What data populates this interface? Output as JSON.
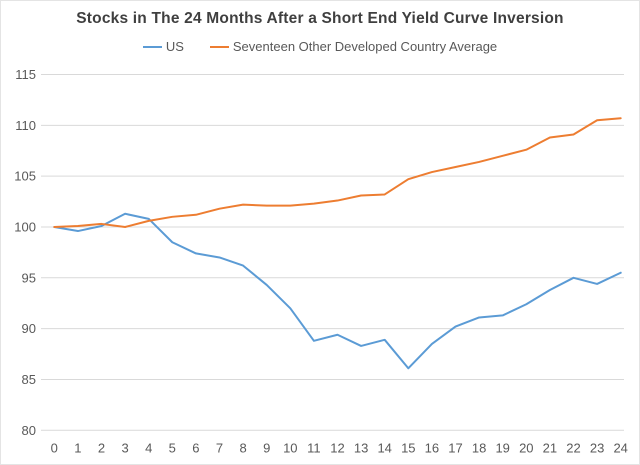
{
  "chart_data": {
    "type": "line",
    "title": "Stocks in The 24 Months After a Short End Yield Curve Inversion",
    "xlabel": "",
    "ylabel": "",
    "x": [
      0,
      1,
      2,
      3,
      4,
      5,
      6,
      7,
      8,
      9,
      10,
      11,
      12,
      13,
      14,
      15,
      16,
      17,
      18,
      19,
      20,
      21,
      22,
      23,
      24
    ],
    "series": [
      {
        "name": "US",
        "color": "#5B9BD5",
        "values": [
          100.0,
          99.6,
          100.1,
          101.3,
          100.8,
          98.5,
          97.4,
          97.0,
          96.2,
          94.3,
          92.0,
          88.8,
          89.4,
          88.3,
          88.9,
          86.1,
          88.5,
          90.2,
          91.1,
          91.3,
          92.4,
          93.8,
          95.0,
          94.4,
          95.5
        ]
      },
      {
        "name": "Seventeen Other Developed Country Average",
        "color": "#ED7D31",
        "values": [
          100.0,
          100.1,
          100.3,
          100.0,
          100.6,
          101.0,
          101.2,
          101.8,
          102.2,
          102.1,
          102.1,
          102.3,
          102.6,
          103.1,
          103.2,
          104.7,
          105.4,
          105.9,
          106.4,
          107.0,
          107.6,
          108.8,
          109.1,
          110.5,
          110.7
        ]
      }
    ],
    "ylim": [
      80,
      115
    ],
    "yticks": [
      80,
      85,
      90,
      95,
      100,
      105,
      110,
      115
    ],
    "xticks": [
      0,
      1,
      2,
      3,
      4,
      5,
      6,
      7,
      8,
      9,
      10,
      11,
      12,
      13,
      14,
      15,
      16,
      17,
      18,
      19,
      20,
      21,
      22,
      23,
      24
    ],
    "grid": "horizontal",
    "grid_color": "#d9d9d9",
    "legend_position": "top",
    "title_color": "#3f3f3f",
    "tick_color": "#595959"
  }
}
